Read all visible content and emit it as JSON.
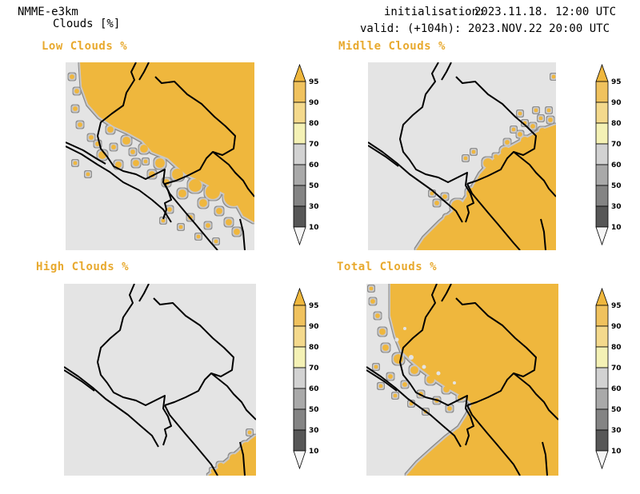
{
  "header": {
    "model": "NMME-e3km",
    "variable": "Clouds [%]",
    "init_label": "initialisation:",
    "init_value": "2023.11.18. 12:00 UTC",
    "valid_label": "valid: (+104h):",
    "valid_value": "2023.NOV.22 20:00 UTC"
  },
  "panels": [
    {
      "title": "Low Clouds %"
    },
    {
      "title": "Midlle Clouds %"
    },
    {
      "title": "High Clouds %"
    },
    {
      "title": "Total Clouds %"
    }
  ],
  "colorbar": {
    "levels": [
      "95",
      "90",
      "80",
      "70",
      "60",
      "50",
      "30",
      "10"
    ],
    "colors": [
      "#efb73d",
      "#f0c25e",
      "#f4d98c",
      "#f4f1b5",
      "#d2d2d2",
      "#a9a9a9",
      "#848484",
      "#575757",
      "#f5f5f5"
    ]
  },
  "colors": {
    "cloud": "#efb73d",
    "background": "#e4e4e4",
    "title": "#e8a92e",
    "border": "#000000"
  }
}
